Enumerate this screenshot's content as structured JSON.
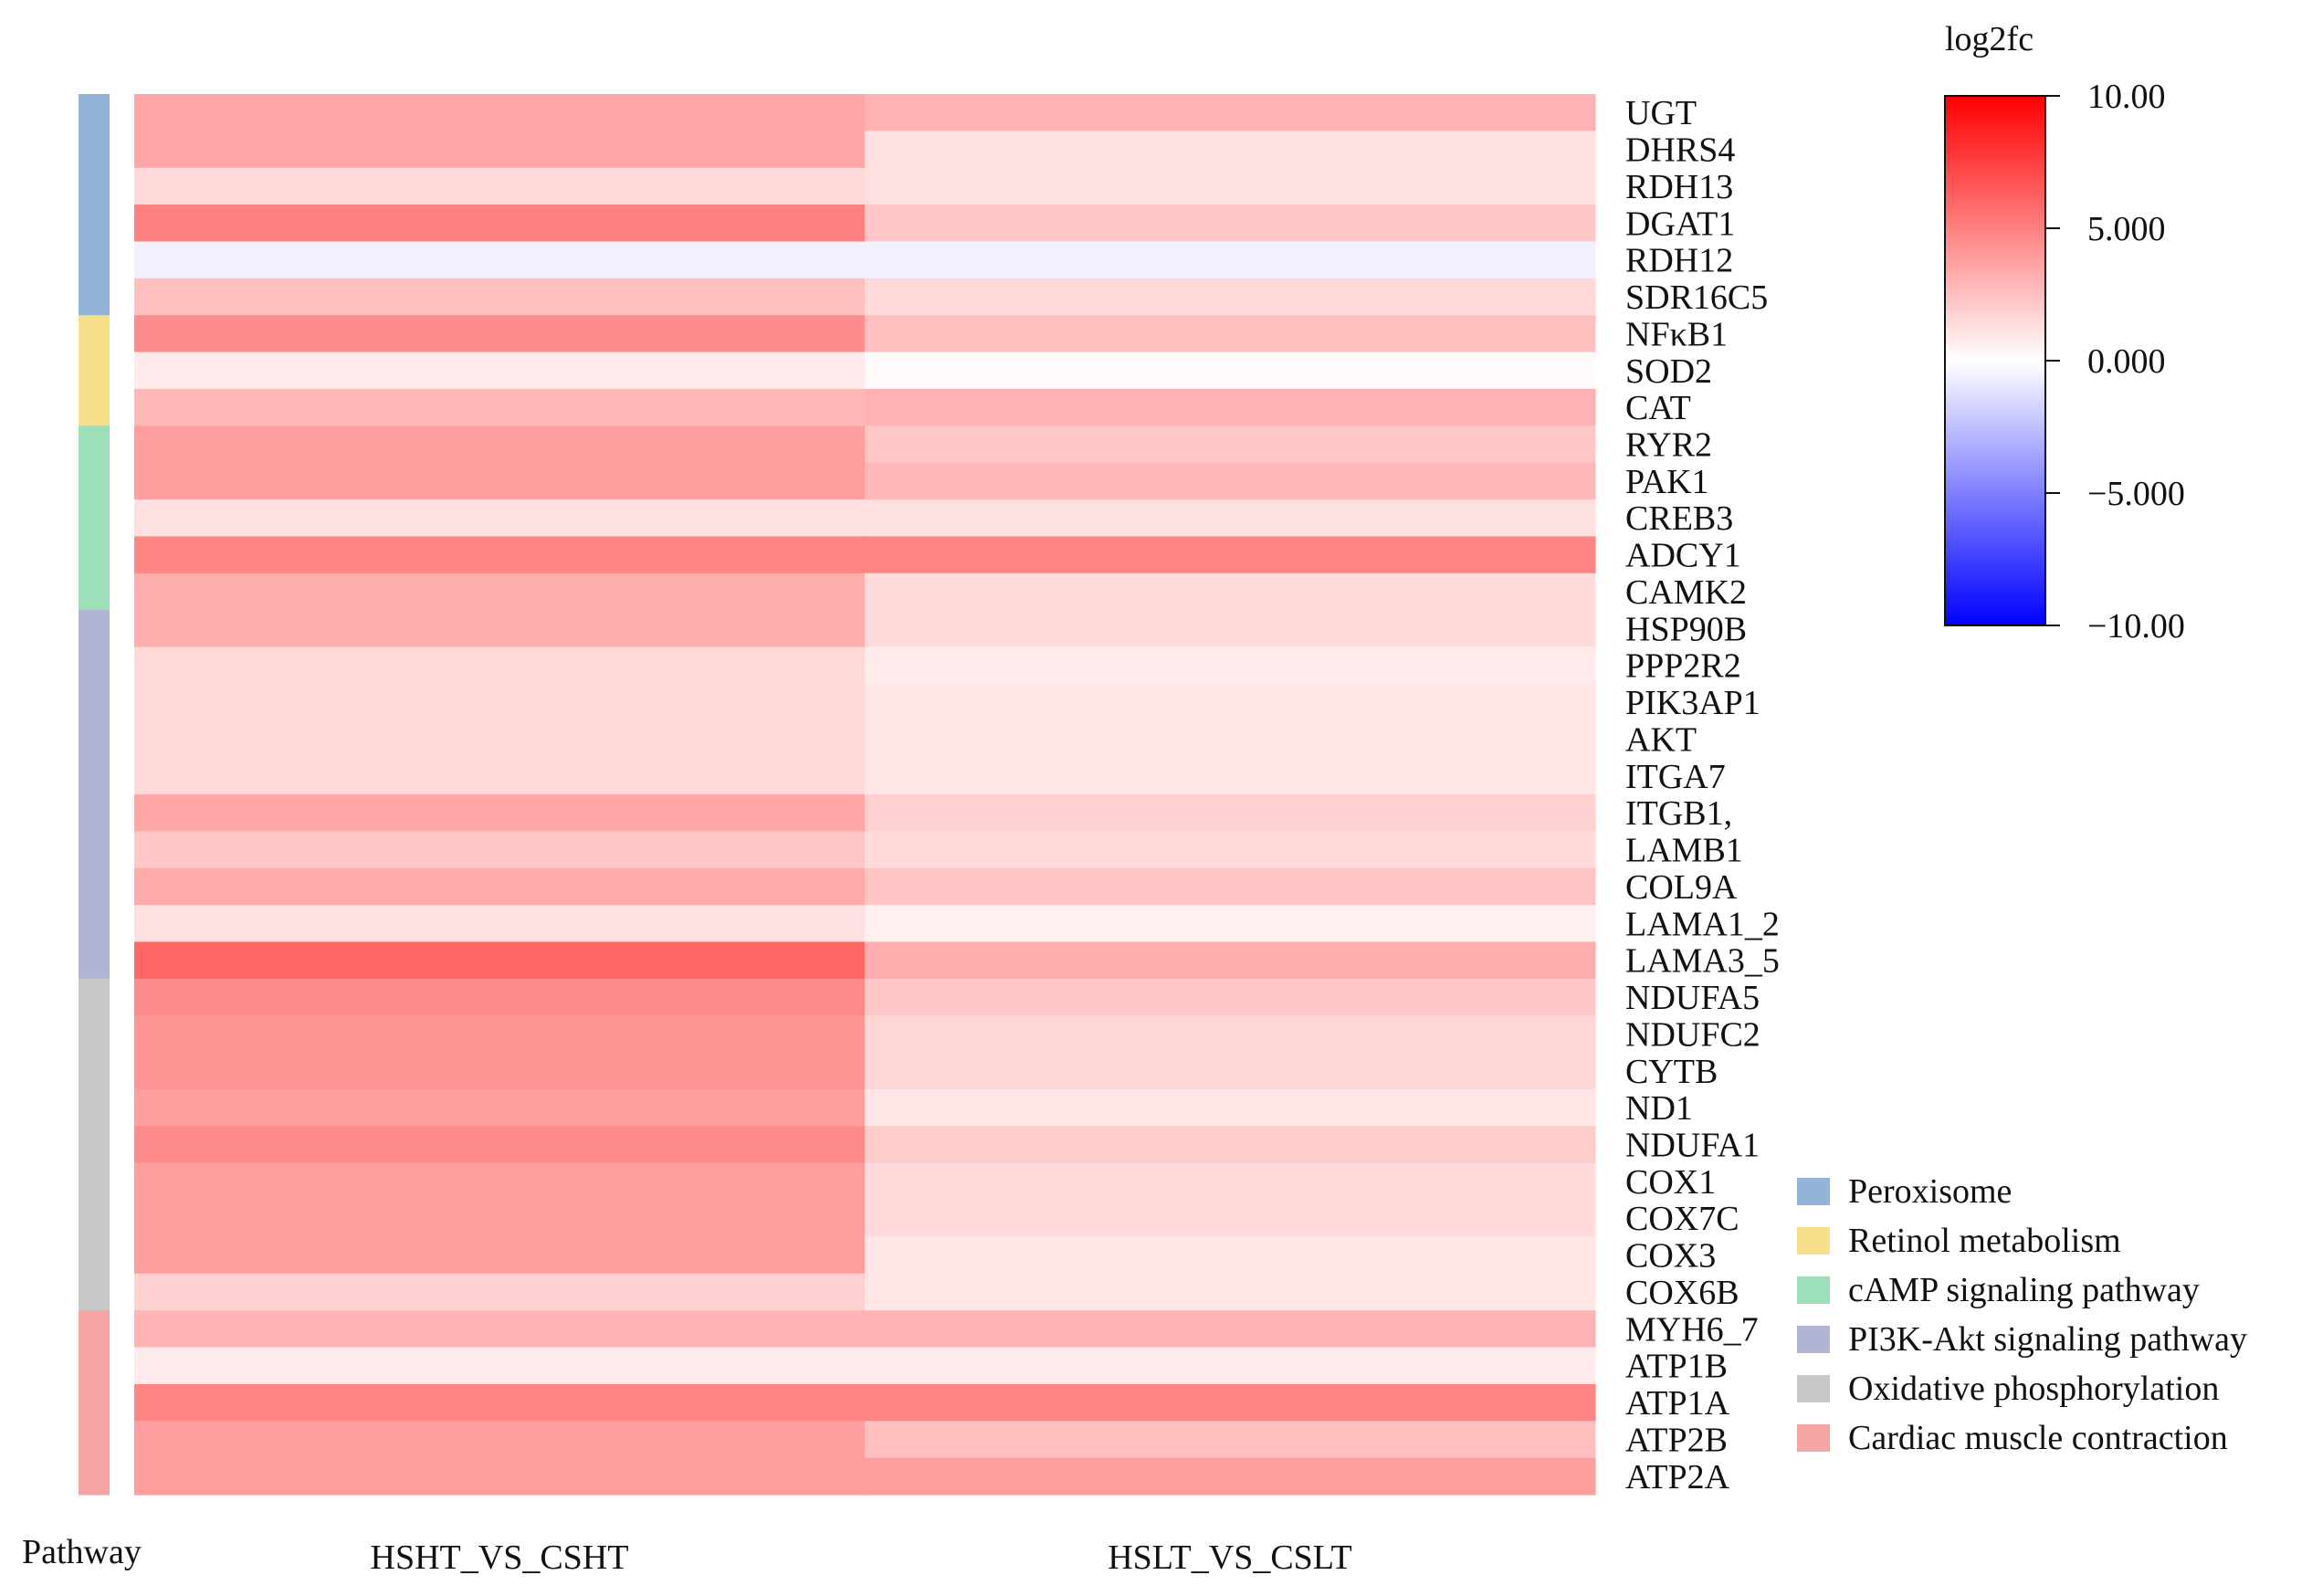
{
  "chart_data": {
    "type": "heatmap",
    "colorbar_title": "log2fc",
    "color_range": [
      -10,
      10
    ],
    "colorbar_ticks": [
      "10.00",
      "5.000",
      "0.000",
      "−5.000",
      "−10.00"
    ],
    "colorbar_tick_values": [
      10,
      5,
      0,
      -5,
      -10
    ],
    "colors": {
      "low": "#0000ff",
      "mid": "#ffffff",
      "high": "#ff0000"
    },
    "columns": [
      "HSHT_VS_CSHT",
      "HSLT_VS_CSLT"
    ],
    "pathway_axis_label": "Pathway",
    "rows": [
      "UGT",
      "DHRS4",
      "RDH13",
      "DGAT1",
      "RDH12",
      "SDR16C5",
      "NFκB1",
      "SOD2",
      "CAT",
      "RYR2",
      "PAK1",
      "CREB3",
      "ADCY1",
      "CAMK2",
      "HSP90B",
      "PPP2R2",
      "PIK3AP1",
      "AKT",
      "ITGA7",
      "ITGB1,",
      "LAMB1",
      "COL9A",
      "LAMA1_2",
      "LAMA3_5",
      "NDUFA5",
      "NDUFC2",
      "CYTB",
      "ND1",
      "NDUFA1",
      "COX1",
      "COX7C",
      "COX3",
      "COX6B",
      "MYH6_7",
      "ATP1B",
      "ATP1A",
      "ATP2B",
      "ATP2A"
    ],
    "values": [
      [
        3.5,
        3.0
      ],
      [
        3.5,
        1.2
      ],
      [
        1.5,
        1.2
      ],
      [
        5.0,
        2.2
      ],
      [
        -0.6,
        -0.6
      ],
      [
        2.5,
        1.5
      ],
      [
        4.5,
        2.5
      ],
      [
        0.8,
        0.2
      ],
      [
        2.8,
        3.0
      ],
      [
        3.8,
        2.2
      ],
      [
        3.8,
        2.8
      ],
      [
        1.2,
        1.2
      ],
      [
        4.8,
        4.8
      ],
      [
        3.2,
        1.4
      ],
      [
        3.2,
        1.4
      ],
      [
        1.5,
        0.8
      ],
      [
        1.5,
        1.0
      ],
      [
        1.5,
        1.0
      ],
      [
        1.5,
        1.0
      ],
      [
        3.5,
        1.8
      ],
      [
        2.2,
        1.4
      ],
      [
        3.3,
        2.3
      ],
      [
        1.2,
        0.6
      ],
      [
        6.0,
        3.2
      ],
      [
        4.5,
        2.2
      ],
      [
        4.2,
        1.6
      ],
      [
        4.2,
        1.6
      ],
      [
        3.8,
        1.0
      ],
      [
        4.5,
        2.0
      ],
      [
        3.8,
        1.4
      ],
      [
        3.8,
        1.4
      ],
      [
        3.8,
        1.0
      ],
      [
        1.8,
        1.0
      ],
      [
        3.0,
        3.0
      ],
      [
        0.8,
        0.8
      ],
      [
        4.8,
        4.8
      ],
      [
        3.8,
        2.5
      ],
      [
        3.8,
        3.8
      ]
    ],
    "pathways": [
      {
        "name": "Peroxisome",
        "color": "#92b4d8",
        "rows": 6
      },
      {
        "name": "Retinol metabolism",
        "color": "#f7e08a",
        "rows": 3
      },
      {
        "name": "cAMP signaling pathway",
        "color": "#9cdfb8",
        "rows": 5
      },
      {
        "name": "PI3K-Akt signaling pathway",
        "color": "#b1b4d2",
        "rows": 10
      },
      {
        "name": "Oxidative phosphorylation",
        "color": "#c8c8c8",
        "rows": 9
      },
      {
        "name": "Cardiac muscle contraction",
        "color": "#f7a4a4",
        "rows": 5
      }
    ]
  }
}
